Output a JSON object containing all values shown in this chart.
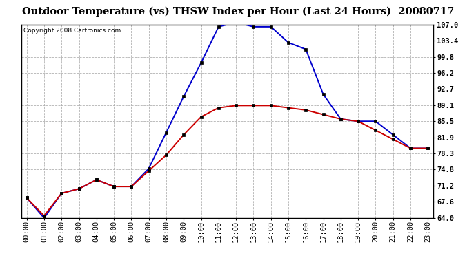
{
  "title": "Outdoor Temperature (vs) THSW Index per Hour (Last 24 Hours)  20080717",
  "copyright": "Copyright 2008 Cartronics.com",
  "x_labels": [
    "00:00",
    "01:00",
    "02:00",
    "03:00",
    "04:00",
    "05:00",
    "06:00",
    "07:00",
    "08:00",
    "09:00",
    "10:00",
    "11:00",
    "12:00",
    "13:00",
    "14:00",
    "15:00",
    "16:00",
    "17:00",
    "18:00",
    "19:00",
    "20:00",
    "21:00",
    "22:00",
    "23:00"
  ],
  "temp_values": [
    68.5,
    64.5,
    69.5,
    70.5,
    72.5,
    71.0,
    71.0,
    74.5,
    78.0,
    82.5,
    86.5,
    88.5,
    89.0,
    89.0,
    89.0,
    88.5,
    88.0,
    87.0,
    86.0,
    85.5,
    83.5,
    81.5,
    79.5,
    79.5
  ],
  "thsw_values": [
    68.5,
    64.0,
    69.5,
    70.5,
    72.5,
    71.0,
    71.0,
    75.0,
    83.0,
    91.0,
    98.5,
    106.5,
    107.5,
    106.5,
    106.5,
    103.0,
    101.5,
    91.5,
    86.0,
    85.5,
    85.5,
    82.5,
    79.5,
    79.5
  ],
  "temp_color": "#cc0000",
  "thsw_color": "#0000cc",
  "bg_color": "#ffffff",
  "plot_bg_color": "#ffffff",
  "grid_color": "#aaaaaa",
  "ylim": [
    64.0,
    107.0
  ],
  "yticks": [
    64.0,
    67.6,
    71.2,
    74.8,
    78.3,
    81.9,
    85.5,
    89.1,
    92.7,
    96.2,
    99.8,
    103.4,
    107.0
  ],
  "title_fontsize": 10.5,
  "copyright_fontsize": 6.5,
  "tick_fontsize": 7.5,
  "marker": "s",
  "marker_size": 3.0,
  "line_width": 1.4
}
